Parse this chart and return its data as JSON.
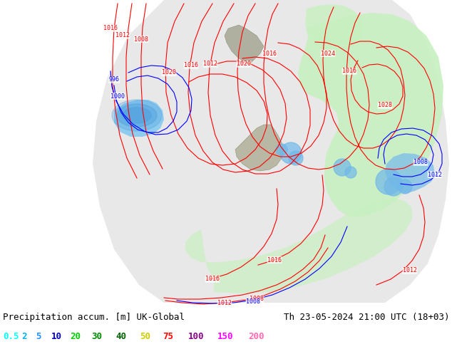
{
  "title_left": "Precipitation accum. [m] UK-Global",
  "title_right": "Th 23-05-2024 21:00 UTC (18+03)",
  "legend_values": [
    "0.5",
    "2",
    "5",
    "10",
    "20",
    "30",
    "40",
    "50",
    "75",
    "100",
    "150",
    "200"
  ],
  "legend_colors": [
    "#00ffff",
    "#00b2ee",
    "#1e90ff",
    "#0000cd",
    "#00cd00",
    "#008b00",
    "#006400",
    "#cdcd00",
    "#ff0000",
    "#8b008b",
    "#ff00ff",
    "#ff69b4"
  ],
  "bg_color": "#ffffff",
  "text_color": "#000000",
  "font_size_title": 9,
  "font_size_legend": 9,
  "map_domain_color": "#f0f0f0",
  "land_color": "#c8c8a0",
  "outside_color": "#b8b8a0",
  "green_precip_color": "#c8f0c0",
  "blue_precip_color": "#80c8f0",
  "sea_inside_color": "#e8e8e8",
  "isobar_red": "#ff0000",
  "isobar_blue": "#0000ff",
  "isobar_lw": 0.8,
  "isobar_fontsize": 6
}
